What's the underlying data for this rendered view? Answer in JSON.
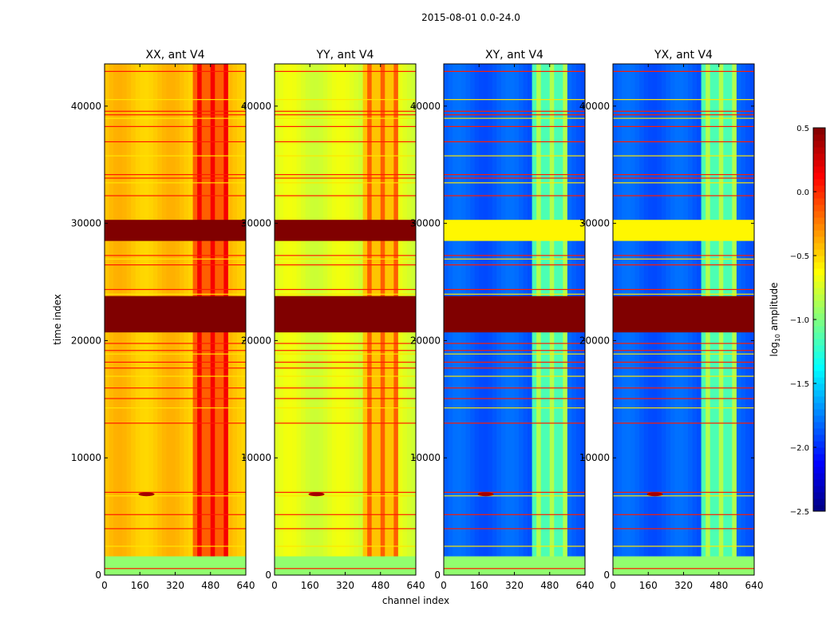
{
  "chart_data": {
    "type": "heatmap",
    "title": "2015-08-01 0.0-24.0",
    "xlabel": "channel index",
    "ylabel": "time index",
    "xlim": [
      0,
      640
    ],
    "ylim": [
      0,
      43600
    ],
    "xticks": [
      "0",
      "160",
      "320",
      "480",
      "640"
    ],
    "xtick_values": [
      0,
      160,
      320,
      480,
      640
    ],
    "yticks": [
      "0",
      "10000",
      "20000",
      "30000",
      "40000"
    ],
    "ytick_values": [
      0,
      10000,
      20000,
      30000,
      40000
    ],
    "colorbar": {
      "label": "log10 amplitude",
      "label_main": "log",
      "label_sub": "10",
      "label_rest": " amplitude",
      "range": [
        -2.5,
        0.5
      ],
      "ticks": [
        "0.5",
        "0.0",
        "−0.5",
        "−1.0",
        "−1.5",
        "−2.0",
        "−2.5"
      ],
      "tick_values": [
        0.5,
        0.0,
        -0.5,
        -1.0,
        -1.5,
        -2.0,
        -2.5
      ],
      "colormap": "jet"
    },
    "panels": [
      {
        "title": "XX, ant V4",
        "base": -0.45,
        "band_value": -0.05,
        "bottom_value": -0.95,
        "mid_value": 0.5,
        "upper_sat": 0.5
      },
      {
        "title": "YY, ant V4",
        "base": -0.72,
        "band_value": -0.35,
        "bottom_value": -0.95,
        "mid_value": 0.5,
        "upper_sat": 0.5
      },
      {
        "title": "XY, ant V4",
        "base": -1.85,
        "band_value": -1.05,
        "bottom_value": -0.95,
        "mid_value": 0.5,
        "upper_sat": -0.6
      },
      {
        "title": "YX, ant V4",
        "base": -1.85,
        "band_value": -1.05,
        "bottom_value": -0.95,
        "mid_value": 0.5,
        "upper_sat": -0.6
      }
    ],
    "channel_band": [
      400,
      560
    ],
    "saturated_time_ranges": [
      [
        20700,
        23800
      ],
      [
        28500,
        30300
      ]
    ],
    "bottom_range": [
      0,
      1600
    ],
    "rfi_time_lines": [
      600,
      2500,
      4000,
      5200,
      6800,
      7100,
      13000,
      14300,
      15100,
      16000,
      17000,
      17700,
      18200,
      18900,
      19200,
      19800,
      24000,
      24400,
      26500,
      27000,
      27300,
      32400,
      33500,
      33900,
      34200,
      35800,
      37000,
      38300,
      39000,
      39300,
      39600,
      40600,
      43000
    ]
  }
}
